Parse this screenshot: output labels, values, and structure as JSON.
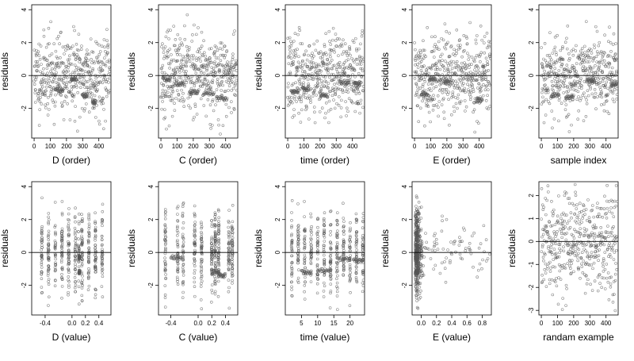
{
  "chart_data": [
    {
      "type": "scatter",
      "xlabel": "D (order)",
      "ylabel": "residuals",
      "xticks": [
        0,
        100,
        200,
        300,
        400
      ],
      "xlim": [
        -15,
        475
      ],
      "yticks": [
        -2,
        0,
        2,
        4
      ],
      "ylim": [
        -3.8,
        4.3
      ],
      "refline": 0,
      "n": 470,
      "seed": 11,
      "xmode": "order",
      "clusters": [
        [
          130,
          180,
          -0.9
        ],
        [
          230,
          260,
          -0.2
        ],
        [
          300,
          330,
          -1.2
        ],
        [
          360,
          380,
          -1.6
        ]
      ]
    },
    {
      "type": "scatter",
      "xlabel": "C (order)",
      "ylabel": "residuals",
      "xticks": [
        0,
        100,
        200,
        300,
        400
      ],
      "xlim": [
        -15,
        475
      ],
      "yticks": [
        -2,
        0,
        2,
        4
      ],
      "ylim": [
        -3.8,
        4.3
      ],
      "refline": 0,
      "n": 470,
      "seed": 23,
      "xmode": "order",
      "clusters": [
        [
          10,
          60,
          -0.2
        ],
        [
          80,
          140,
          -0.5
        ],
        [
          180,
          230,
          -1.0
        ],
        [
          260,
          330,
          -1.1
        ],
        [
          350,
          410,
          -1.4
        ]
      ]
    },
    {
      "type": "scatter",
      "xlabel": "time (order)",
      "ylabel": "residuals",
      "xticks": [
        0,
        100,
        200,
        300,
        400
      ],
      "xlim": [
        -15,
        475
      ],
      "yticks": [
        -2,
        0,
        2,
        4
      ],
      "ylim": [
        -3.8,
        4.3
      ],
      "refline": 0,
      "n": 470,
      "seed": 37,
      "xmode": "order",
      "clusters": [
        [
          20,
          70,
          -1.0
        ],
        [
          90,
          130,
          -0.8
        ],
        [
          200,
          250,
          -1.2
        ],
        [
          320,
          380,
          -0.4
        ],
        [
          410,
          450,
          -0.5
        ]
      ]
    },
    {
      "type": "scatter",
      "xlabel": "E (order)",
      "ylabel": "residuals",
      "xticks": [
        0,
        100,
        200,
        300,
        400
      ],
      "xlim": [
        -15,
        475
      ],
      "yticks": [
        -2,
        0,
        2,
        4
      ],
      "ylim": [
        -3.8,
        4.3
      ],
      "refline": 0,
      "n": 470,
      "seed": 41,
      "xmode": "order",
      "clusters": [
        [
          40,
          80,
          -1.1
        ],
        [
          90,
          130,
          -0.2
        ],
        [
          180,
          220,
          -0.4
        ],
        [
          380,
          420,
          -1.5
        ]
      ]
    },
    {
      "type": "scatter",
      "xlabel": "sample index",
      "ylabel": "residuals",
      "xticks": [
        0,
        100,
        200,
        300,
        400
      ],
      "xlim": [
        -15,
        475
      ],
      "yticks": [
        -2,
        0,
        2,
        4
      ],
      "ylim": [
        -3.8,
        4.3
      ],
      "refline": 0,
      "n": 470,
      "seed": 53,
      "xmode": "order",
      "clusters": [
        [
          60,
          110,
          -1.2
        ],
        [
          150,
          200,
          -1.3
        ],
        [
          280,
          330,
          -0.3
        ],
        [
          430,
          470,
          -0.5
        ]
      ]
    },
    {
      "type": "scatter",
      "xlabel": "D (value)",
      "ylabel": "residuals",
      "xticks": [
        -0.4,
        0,
        0.2,
        0.4
      ],
      "xtick_labels": [
        "-0.4",
        "0.0",
        "0.2",
        "0.4"
      ],
      "xlim": [
        -0.6,
        0.58
      ],
      "yticks": [
        -2,
        0,
        2,
        4
      ],
      "ylim": [
        -3.8,
        4.3
      ],
      "refline": 0,
      "n": 470,
      "seed": 61,
      "xmode": "columns",
      "columns": [
        -0.45,
        -0.35,
        -0.25,
        -0.15,
        -0.05,
        0.05,
        0.1,
        0.15,
        0.25,
        0.35,
        0.45
      ],
      "clusters": [
        [
          0.1,
          0.12,
          -0.3
        ],
        [
          0.1,
          0.12,
          -1.2
        ]
      ]
    },
    {
      "type": "scatter",
      "xlabel": "C (value)",
      "ylabel": "residuals",
      "xticks": [
        -0.4,
        0,
        0.2,
        0.4
      ],
      "xtick_labels": [
        "-0.4",
        "0.0",
        "0.2",
        "0.4"
      ],
      "xlim": [
        -0.58,
        0.58
      ],
      "yticks": [
        -2,
        0,
        2,
        4
      ],
      "ylim": [
        -3.8,
        4.3
      ],
      "refline": 0,
      "n": 470,
      "seed": 71,
      "xmode": "columns",
      "columns": [
        -0.48,
        -0.3,
        -0.22,
        -0.05,
        0.05,
        0.2,
        0.25,
        0.3,
        0.45,
        0.5
      ],
      "clusters": [
        [
          -0.4,
          -0.25,
          -0.3
        ],
        [
          0.2,
          0.3,
          -1.2
        ],
        [
          0.3,
          0.4,
          -1.4
        ]
      ]
    },
    {
      "type": "scatter",
      "xlabel": "time (value)",
      "ylabel": "residuals",
      "xticks": [
        5,
        10,
        15,
        20
      ],
      "xlim": [
        0,
        24.5
      ],
      "yticks": [
        -2,
        0,
        2,
        4
      ],
      "ylim": [
        -3.8,
        4.3
      ],
      "refline": 0,
      "n": 470,
      "seed": 83,
      "xmode": "columns",
      "columns": [
        2,
        4,
        6,
        8,
        10,
        12,
        14,
        16,
        18,
        20,
        22,
        24
      ],
      "clusters": [
        [
          5,
          8,
          -1.2
        ],
        [
          10,
          14,
          -1.1
        ],
        [
          16,
          20,
          -0.4
        ],
        [
          21,
          24,
          -0.5
        ]
      ]
    },
    {
      "type": "scatter",
      "xlabel": "E (value)",
      "ylabel": "residuals",
      "xticks": [
        0,
        0.2,
        0.4,
        0.6,
        0.8
      ],
      "xtick_labels": [
        "0.0",
        "0.2",
        "0.4",
        "0.6",
        "0.8"
      ],
      "xlim": [
        -0.12,
        0.92
      ],
      "yticks": [
        -2,
        0,
        2,
        4
      ],
      "ylim": [
        -3.8,
        4.3
      ],
      "refline": 0,
      "n": 470,
      "seed": 97,
      "xmode": "skew",
      "clusters": [
        [
          -0.08,
          -0.04,
          -0.3
        ],
        [
          -0.08,
          -0.04,
          -1.2
        ]
      ]
    },
    {
      "type": "scatter",
      "xlabel": "randam example",
      "ylabel": "residuals",
      "xticks": [
        0,
        100,
        200,
        300,
        400
      ],
      "xlim": [
        -15,
        475
      ],
      "yticks": [
        -3,
        -2,
        -1,
        0,
        1,
        2
      ],
      "ylim": [
        -3.2,
        2.6
      ],
      "refline": 0,
      "n": 470,
      "seed": 109,
      "xmode": "random",
      "clusters": []
    }
  ]
}
